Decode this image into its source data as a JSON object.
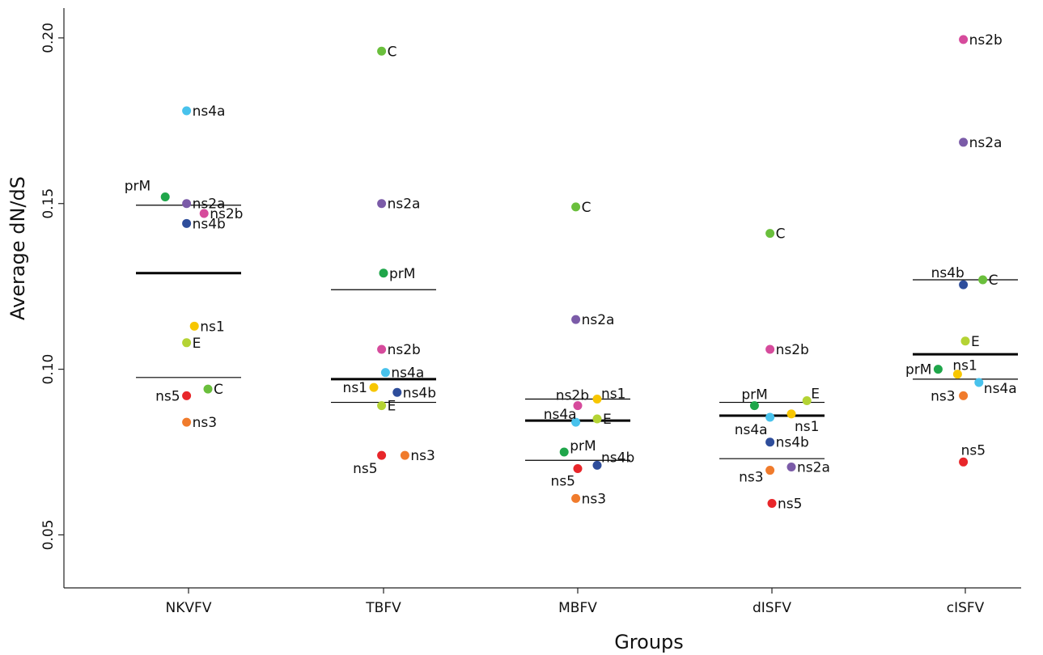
{
  "chart_data": {
    "type": "scatter",
    "title": "",
    "xlabel": "Groups",
    "ylabel": "Average dN/dS",
    "ylim": [
      0.034,
      0.209
    ],
    "yticks": [
      0.05,
      0.1,
      0.15,
      0.2
    ],
    "ytick_labels": [
      "0.05",
      "0.10",
      "0.15",
      "0.20"
    ],
    "categories": [
      "NKVFV",
      "TBFV",
      "MBFV",
      "dISFV",
      "cISFV"
    ],
    "grid": false,
    "legend": "none",
    "colors": {
      "C": "#6abf3c",
      "prM": "#1fa64a",
      "E": "#b4d334",
      "ns1": "#f7c600",
      "ns2a": "#7b5ba8",
      "ns2b": "#d64b9c",
      "ns3": "#f07b2c",
      "ns4a": "#48c2ec",
      "ns4b": "#2e4d9b",
      "ns5": "#e8262a"
    },
    "summary_lines": [
      {
        "group": "NKVFV",
        "mean": 0.129,
        "lower": 0.0975,
        "upper": 0.1495
      },
      {
        "group": "TBFV",
        "mean": 0.097,
        "lower": 0.09,
        "upper": 0.124
      },
      {
        "group": "MBFV",
        "mean": 0.0845,
        "lower": 0.0725,
        "upper": 0.091
      },
      {
        "group": "dISFV",
        "mean": 0.086,
        "lower": 0.073,
        "upper": 0.09
      },
      {
        "group": "cISFV",
        "mean": 0.1045,
        "lower": 0.097,
        "upper": 0.127
      }
    ],
    "points": [
      {
        "group": "NKVFV",
        "gene": "ns4a",
        "y": 0.178,
        "jitter": -0.01,
        "label": "ns4a"
      },
      {
        "group": "NKVFV",
        "gene": "prM",
        "y": 0.152,
        "jitter": -0.12,
        "label": "prM"
      },
      {
        "group": "NKVFV",
        "gene": "ns2a",
        "y": 0.15,
        "jitter": -0.01,
        "label": "ns2a"
      },
      {
        "group": "NKVFV",
        "gene": "ns2b",
        "y": 0.147,
        "jitter": 0.08,
        "label": "ns2b"
      },
      {
        "group": "NKVFV",
        "gene": "ns4b",
        "y": 0.144,
        "jitter": -0.01,
        "label": "ns4b"
      },
      {
        "group": "NKVFV",
        "gene": "ns1",
        "y": 0.113,
        "jitter": 0.03,
        "label": "ns1"
      },
      {
        "group": "NKVFV",
        "gene": "E",
        "y": 0.108,
        "jitter": -0.01,
        "label": "E"
      },
      {
        "group": "NKVFV",
        "gene": "C",
        "y": 0.094,
        "jitter": 0.1,
        "label": "C"
      },
      {
        "group": "NKVFV",
        "gene": "ns5",
        "y": 0.092,
        "jitter": -0.01,
        "label": "ns5"
      },
      {
        "group": "NKVFV",
        "gene": "ns3",
        "y": 0.084,
        "jitter": -0.01,
        "label": "ns3"
      },
      {
        "group": "TBFV",
        "gene": "C",
        "y": 0.196,
        "jitter": -0.01,
        "label": "C"
      },
      {
        "group": "TBFV",
        "gene": "ns2a",
        "y": 0.15,
        "jitter": -0.01,
        "label": "ns2a"
      },
      {
        "group": "TBFV",
        "gene": "prM",
        "y": 0.129,
        "jitter": 0.0,
        "label": "prM"
      },
      {
        "group": "TBFV",
        "gene": "ns2b",
        "y": 0.106,
        "jitter": -0.01,
        "label": "ns2b"
      },
      {
        "group": "TBFV",
        "gene": "ns4a",
        "y": 0.099,
        "jitter": 0.01,
        "label": "ns4a"
      },
      {
        "group": "TBFV",
        "gene": "ns1",
        "y": 0.0945,
        "jitter": -0.05,
        "label": "ns1"
      },
      {
        "group": "TBFV",
        "gene": "ns4b",
        "y": 0.093,
        "jitter": 0.07,
        "label": "ns4b"
      },
      {
        "group": "TBFV",
        "gene": "E",
        "y": 0.089,
        "jitter": -0.01,
        "label": "E"
      },
      {
        "group": "TBFV",
        "gene": "ns5",
        "y": 0.074,
        "jitter": -0.01,
        "label": "ns5"
      },
      {
        "group": "TBFV",
        "gene": "ns3",
        "y": 0.074,
        "jitter": 0.11,
        "label": "ns3"
      },
      {
        "group": "MBFV",
        "gene": "C",
        "y": 0.149,
        "jitter": -0.01,
        "label": "C"
      },
      {
        "group": "MBFV",
        "gene": "ns2a",
        "y": 0.115,
        "jitter": -0.01,
        "label": "ns2a"
      },
      {
        "group": "MBFV",
        "gene": "ns1",
        "y": 0.091,
        "jitter": 0.1,
        "label": "ns1"
      },
      {
        "group": "MBFV",
        "gene": "ns2b",
        "y": 0.089,
        "jitter": 0.0,
        "label": "ns2b"
      },
      {
        "group": "MBFV",
        "gene": "E",
        "y": 0.085,
        "jitter": 0.1,
        "label": "E"
      },
      {
        "group": "MBFV",
        "gene": "ns4a",
        "y": 0.084,
        "jitter": -0.01,
        "label": "ns4a"
      },
      {
        "group": "MBFV",
        "gene": "prM",
        "y": 0.075,
        "jitter": -0.07,
        "label": "prM"
      },
      {
        "group": "MBFV",
        "gene": "ns4b",
        "y": 0.071,
        "jitter": 0.1,
        "label": "ns4b"
      },
      {
        "group": "MBFV",
        "gene": "ns5",
        "y": 0.07,
        "jitter": 0.0,
        "label": "ns5"
      },
      {
        "group": "MBFV",
        "gene": "ns3",
        "y": 0.061,
        "jitter": -0.01,
        "label": "ns3"
      },
      {
        "group": "dISFV",
        "gene": "C",
        "y": 0.141,
        "jitter": -0.01,
        "label": "C"
      },
      {
        "group": "dISFV",
        "gene": "ns2b",
        "y": 0.106,
        "jitter": -0.01,
        "label": "ns2b"
      },
      {
        "group": "dISFV",
        "gene": "E",
        "y": 0.0905,
        "jitter": 0.18,
        "label": "E"
      },
      {
        "group": "dISFV",
        "gene": "prM",
        "y": 0.089,
        "jitter": -0.09,
        "label": "prM"
      },
      {
        "group": "dISFV",
        "gene": "ns1",
        "y": 0.0865,
        "jitter": 0.1,
        "label": "ns1"
      },
      {
        "group": "dISFV",
        "gene": "ns4a",
        "y": 0.0855,
        "jitter": -0.01,
        "label": "ns4a"
      },
      {
        "group": "dISFV",
        "gene": "ns4b",
        "y": 0.078,
        "jitter": -0.01,
        "label": "ns4b"
      },
      {
        "group": "dISFV",
        "gene": "ns2a",
        "y": 0.0705,
        "jitter": 0.1,
        "label": "ns2a"
      },
      {
        "group": "dISFV",
        "gene": "ns3",
        "y": 0.0695,
        "jitter": -0.01,
        "label": "ns3"
      },
      {
        "group": "dISFV",
        "gene": "ns5",
        "y": 0.0595,
        "jitter": 0.0,
        "label": "ns5"
      },
      {
        "group": "cISFV",
        "gene": "ns2b",
        "y": 0.1995,
        "jitter": -0.01,
        "label": "ns2b"
      },
      {
        "group": "cISFV",
        "gene": "ns2a",
        "y": 0.1685,
        "jitter": -0.01,
        "label": "ns2a"
      },
      {
        "group": "cISFV",
        "gene": "C",
        "y": 0.127,
        "jitter": 0.09,
        "label": "C"
      },
      {
        "group": "cISFV",
        "gene": "ns4b",
        "y": 0.1255,
        "jitter": -0.01,
        "label": "ns4b"
      },
      {
        "group": "cISFV",
        "gene": "E",
        "y": 0.1085,
        "jitter": 0.0,
        "label": "E"
      },
      {
        "group": "cISFV",
        "gene": "prM",
        "y": 0.1,
        "jitter": -0.14,
        "label": "prM"
      },
      {
        "group": "cISFV",
        "gene": "ns1",
        "y": 0.0985,
        "jitter": -0.04,
        "label": "ns1"
      },
      {
        "group": "cISFV",
        "gene": "ns4a",
        "y": 0.096,
        "jitter": 0.07,
        "label": "ns4a"
      },
      {
        "group": "cISFV",
        "gene": "ns3",
        "y": 0.092,
        "jitter": -0.01,
        "label": "ns3"
      },
      {
        "group": "cISFV",
        "gene": "ns5",
        "y": 0.072,
        "jitter": -0.01,
        "label": "ns5"
      }
    ]
  }
}
